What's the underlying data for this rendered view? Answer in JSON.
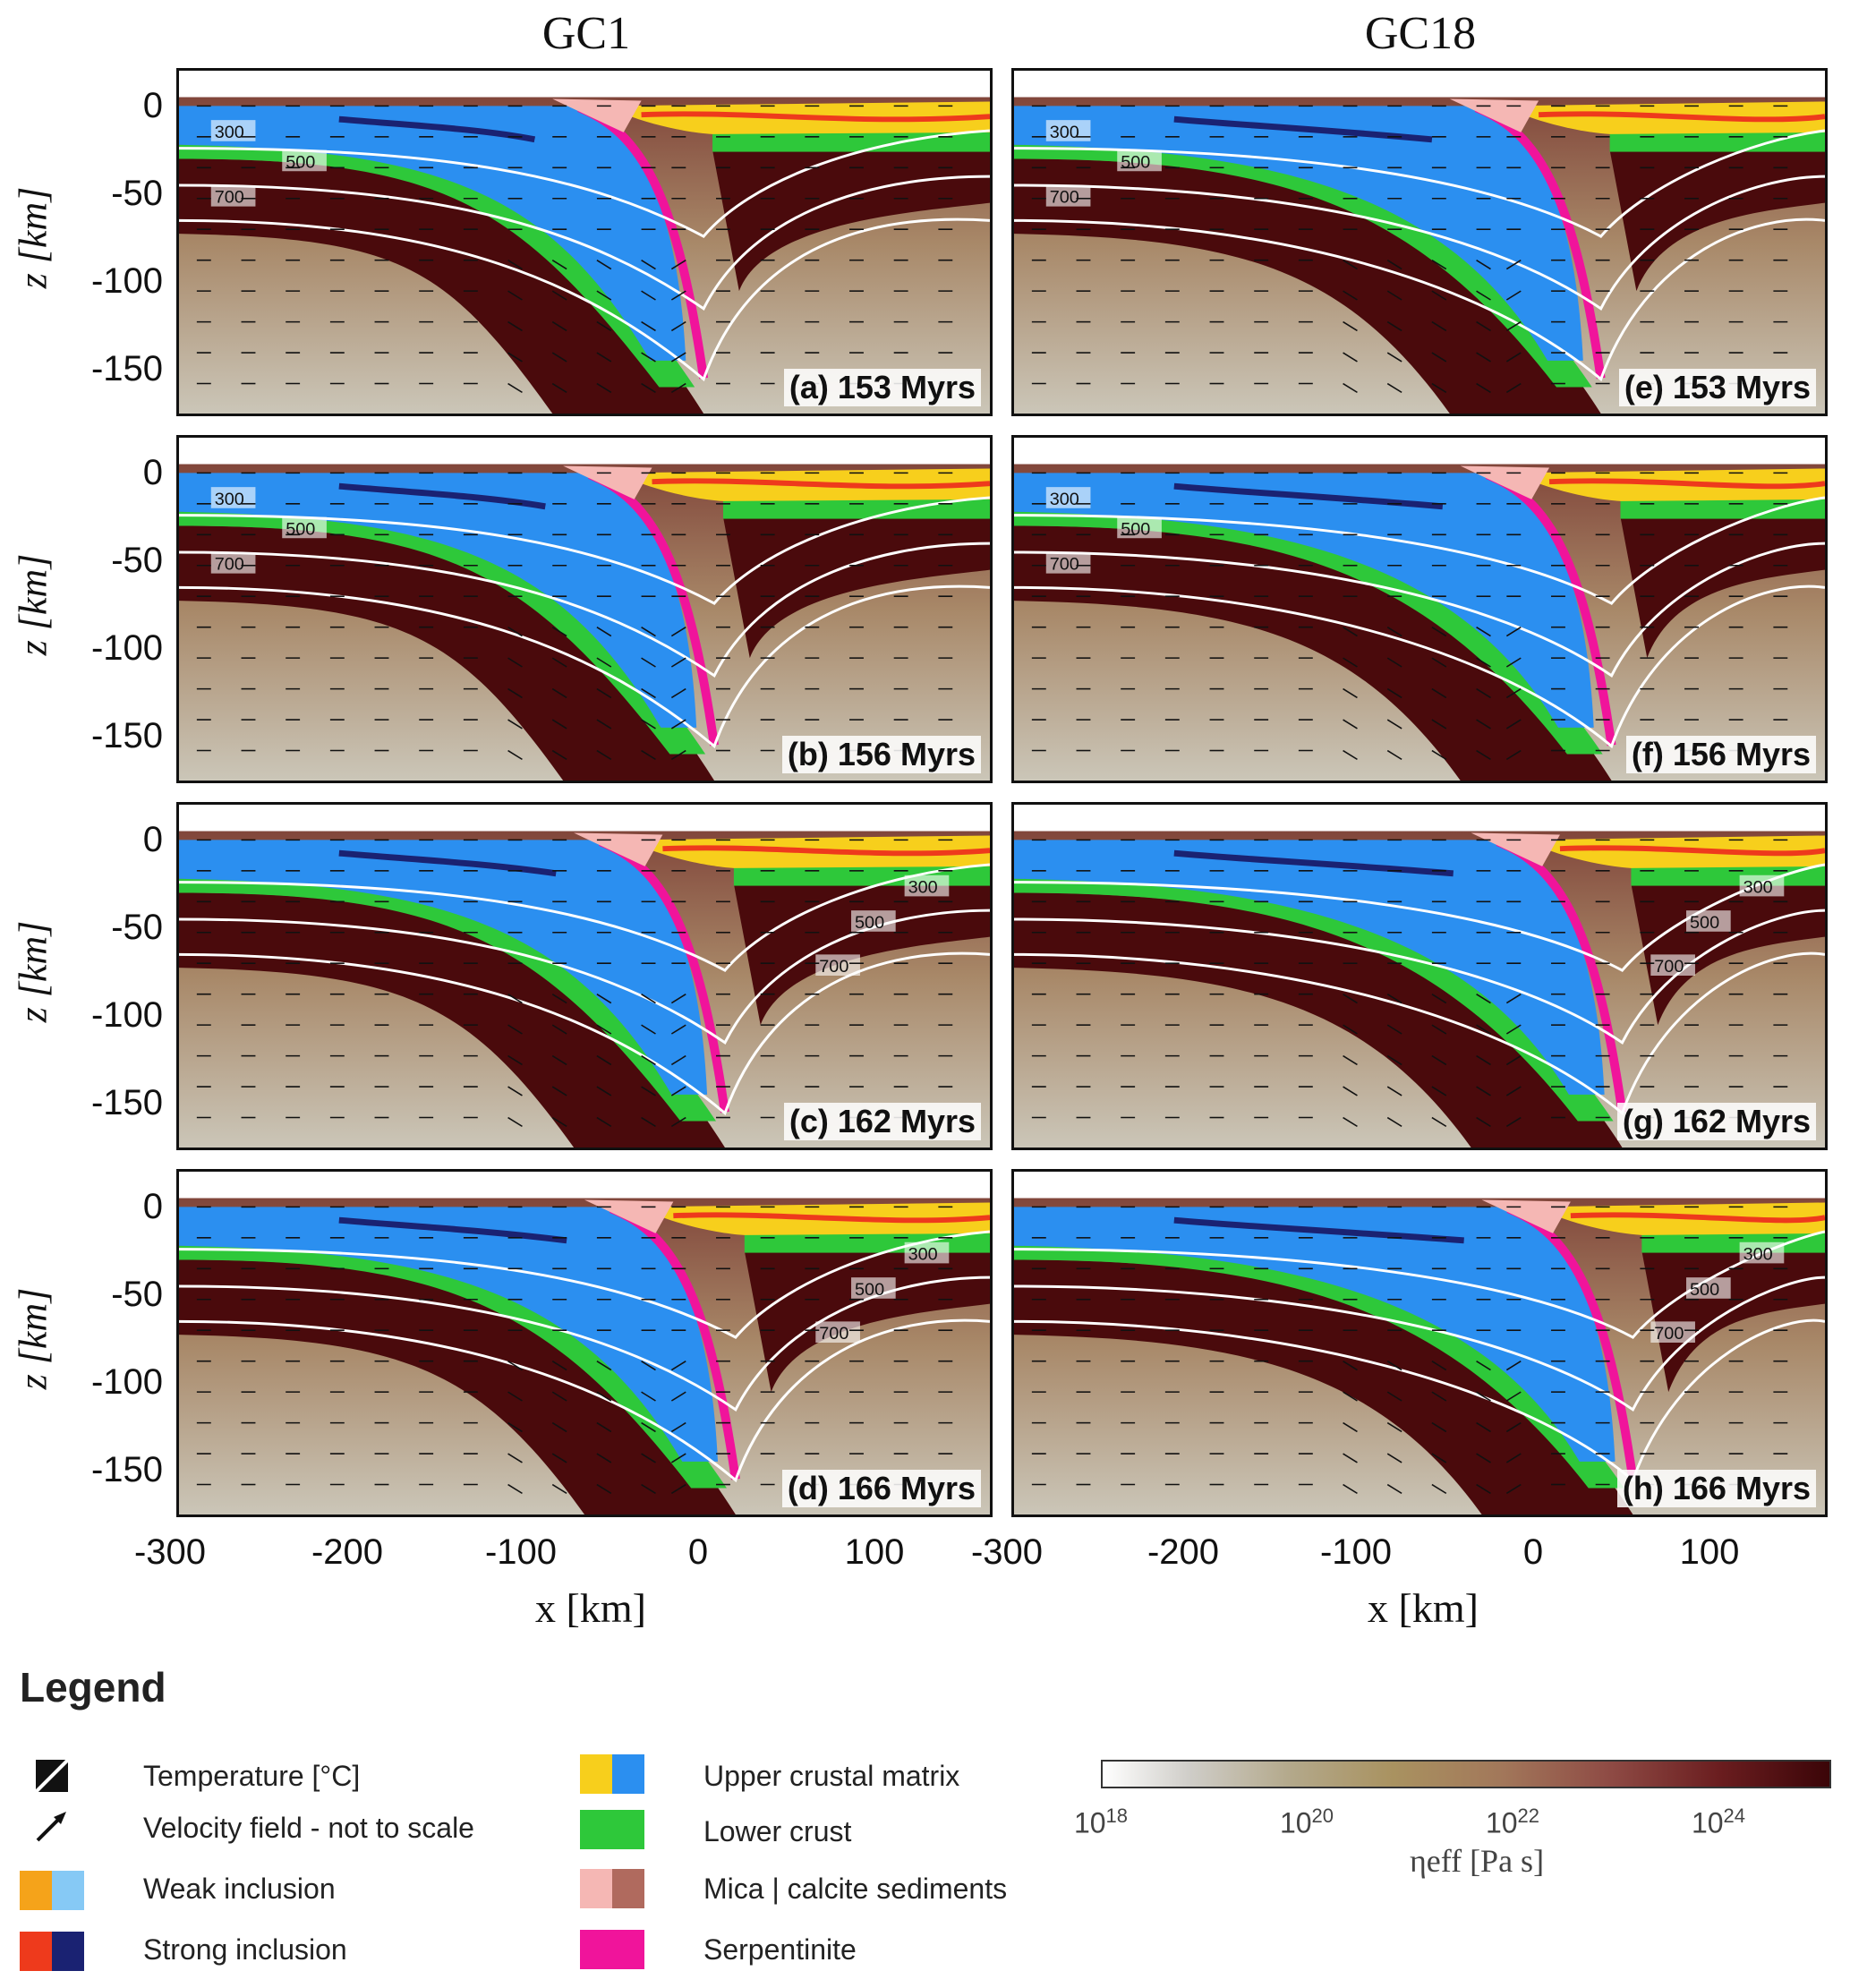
{
  "columns": [
    {
      "title": "GC1"
    },
    {
      "title": "GC18"
    }
  ],
  "panels": [
    {
      "label": "(a) 153 Myrs",
      "col": 0,
      "row": 0,
      "isotherm_labels": [
        "300",
        "500",
        "700"
      ]
    },
    {
      "label": "(b) 156 Myrs",
      "col": 0,
      "row": 1,
      "isotherm_labels": [
        "300",
        "500",
        "700"
      ]
    },
    {
      "label": "(c) 162 Myrs",
      "col": 0,
      "row": 2,
      "isotherm_labels": [
        "300",
        "500",
        "700"
      ]
    },
    {
      "label": "(d) 166 Myrs",
      "col": 0,
      "row": 3,
      "isotherm_labels": [
        "300",
        "500",
        "700"
      ]
    },
    {
      "label": "(e) 153 Myrs",
      "col": 1,
      "row": 0,
      "isotherm_labels": [
        "300",
        "500",
        "700"
      ]
    },
    {
      "label": "(f) 156 Myrs",
      "col": 1,
      "row": 1,
      "isotherm_labels": [
        "300",
        "500",
        "700"
      ]
    },
    {
      "label": "(g) 162 Myrs",
      "col": 1,
      "row": 2,
      "isotherm_labels": [
        "300",
        "500",
        "700"
      ]
    },
    {
      "label": "(h) 166 Myrs",
      "col": 1,
      "row": 3,
      "isotherm_labels": [
        "300",
        "500",
        "700"
      ]
    }
  ],
  "axes": {
    "ylabel": "z [km]",
    "xlabel": "x [km]",
    "yticks": [
      "0",
      "-50",
      "-100",
      "-150"
    ],
    "xticks_left": [
      "-300",
      "-200",
      "-100",
      "0",
      "100"
    ],
    "xticks_right": [
      "-300",
      "-200",
      "-100",
      "0",
      "100"
    ]
  },
  "legend": {
    "title": "Legend",
    "items_left": [
      {
        "label": "Temperature [°C]",
        "icon": "isotherm-icon"
      },
      {
        "label": "Velocity field - not to scale",
        "icon": "arrow-icon"
      },
      {
        "label": "Weak inclusion",
        "colors": [
          "#f5a31a",
          "#86c9f5"
        ]
      },
      {
        "label": "Strong inclusion",
        "colors": [
          "#ee3a1c",
          "#1a2272"
        ]
      }
    ],
    "items_right": [
      {
        "label": "Upper crustal matrix",
        "colors": [
          "#f7cf1c",
          "#2b8ff0"
        ]
      },
      {
        "label": "Lower crust",
        "colors": [
          "#2ec83a"
        ]
      },
      {
        "label": "Mica | calcite sediments",
        "colors": [
          "#f5b7b4",
          "#b06a5e"
        ]
      },
      {
        "label": "Serpentinite",
        "colors": [
          "#f0149b"
        ]
      }
    ]
  },
  "colorbar": {
    "ticks": [
      "10",
      "10",
      "10",
      "10"
    ],
    "exponents": [
      "18",
      "20",
      "22",
      "24"
    ],
    "label": "ηeff [Pa s]"
  },
  "colors": {
    "upper_crust_yellow": "#f7cf1c",
    "upper_crust_blue": "#2b8ff0",
    "lower_crust": "#2ec83a",
    "serpentinite": "#f0149b",
    "lithosphere": "#4a0a0c",
    "asthenosphere": "#b49a7a"
  }
}
